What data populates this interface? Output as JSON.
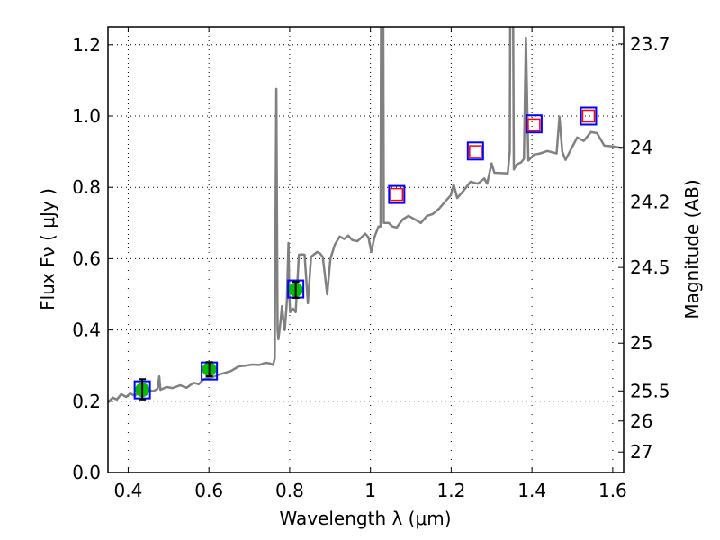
{
  "chart_data": {
    "type": "line",
    "title": "",
    "xlabel": "Wavelength  λ (μm)",
    "ylabel": "Flux  Fν  ( μJy )",
    "ylabel_right": "Magnitude (AB)",
    "xlim": [
      0.35,
      1.627
    ],
    "ylim": [
      0.0,
      1.25
    ],
    "grid": true,
    "x_ticks": [
      0.4,
      0.6,
      0.8,
      1.0,
      1.2,
      1.4,
      1.6
    ],
    "x_tick_labels": [
      "0.4",
      "0.6",
      "0.8",
      "1",
      "1.2",
      "1.4",
      "1.6"
    ],
    "y_ticks": [
      0.0,
      0.2,
      0.4,
      0.6,
      0.8,
      1.0,
      1.2
    ],
    "y_tick_labels": [
      "0.0",
      "0.2",
      "0.4",
      "0.6",
      "0.8",
      "1.0",
      "1.2"
    ],
    "right_ticks_mag": [
      23.7,
      24,
      24.2,
      24.5,
      25,
      25.5,
      26,
      27
    ],
    "right_tick_labels": [
      "23.7",
      "24",
      "24.2",
      "24.5",
      "25",
      "25.5",
      "26",
      "27"
    ],
    "colors": {
      "spectrum": "#808080",
      "observed": "#00bb00",
      "model_box": "#0000ff",
      "upper": "#ff0000",
      "errorbar": "#000000"
    },
    "series": [
      {
        "name": "model spectrum",
        "type": "line",
        "points": [
          [
            0.35,
            0.197
          ],
          [
            0.362,
            0.21
          ],
          [
            0.372,
            0.205
          ],
          [
            0.383,
            0.22
          ],
          [
            0.395,
            0.212
          ],
          [
            0.405,
            0.222
          ],
          [
            0.417,
            0.215
          ],
          [
            0.428,
            0.228
          ],
          [
            0.439,
            0.222
          ],
          [
            0.45,
            0.232
          ],
          [
            0.462,
            0.228
          ],
          [
            0.473,
            0.235
          ],
          [
            0.477,
            0.27
          ],
          [
            0.48,
            0.232
          ],
          [
            0.495,
            0.24
          ],
          [
            0.51,
            0.237
          ],
          [
            0.529,
            0.245
          ],
          [
            0.545,
            0.238
          ],
          [
            0.562,
            0.252
          ],
          [
            0.575,
            0.248
          ],
          [
            0.585,
            0.26
          ],
          [
            0.596,
            0.265
          ],
          [
            0.61,
            0.268
          ],
          [
            0.625,
            0.275
          ],
          [
            0.641,
            0.28
          ],
          [
            0.655,
            0.285
          ],
          [
            0.674,
            0.298
          ],
          [
            0.69,
            0.3
          ],
          [
            0.708,
            0.303
          ],
          [
            0.725,
            0.302
          ],
          [
            0.74,
            0.308
          ],
          [
            0.752,
            0.306
          ],
          [
            0.759,
            0.302
          ],
          [
            0.763,
            0.32
          ],
          [
            0.767,
            1.076
          ],
          [
            0.77,
            0.4
          ],
          [
            0.772,
            0.374
          ],
          [
            0.777,
            0.42
          ],
          [
            0.781,
            0.467
          ],
          [
            0.785,
            0.42
          ],
          [
            0.788,
            0.4
          ],
          [
            0.793,
            0.48
          ],
          [
            0.797,
            0.644
          ],
          [
            0.799,
            0.5
          ],
          [
            0.801,
            0.45
          ],
          [
            0.808,
            0.46
          ],
          [
            0.815,
            0.45
          ],
          [
            0.823,
            0.611
          ],
          [
            0.83,
            0.612
          ],
          [
            0.837,
            0.611
          ],
          [
            0.845,
            0.475
          ],
          [
            0.853,
            0.605
          ],
          [
            0.868,
            0.619
          ],
          [
            0.875,
            0.615
          ],
          [
            0.882,
            0.605
          ],
          [
            0.893,
            0.5
          ],
          [
            0.901,
            0.6
          ],
          [
            0.912,
            0.64
          ],
          [
            0.924,
            0.662
          ],
          [
            0.935,
            0.655
          ],
          [
            0.945,
            0.665
          ],
          [
            0.955,
            0.652
          ],
          [
            0.968,
            0.649
          ],
          [
            0.987,
            0.67
          ],
          [
            0.995,
            0.66
          ],
          [
            1.002,
            0.619
          ],
          [
            1.01,
            0.66
          ],
          [
            1.02,
            0.69
          ],
          [
            1.025,
            0.69
          ],
          [
            1.027,
            1.6
          ],
          [
            1.031,
            1.6
          ],
          [
            1.033,
            0.7
          ],
          [
            1.045,
            0.7
          ],
          [
            1.055,
            0.69
          ],
          [
            1.065,
            0.687
          ],
          [
            1.08,
            0.71
          ],
          [
            1.094,
            0.72
          ],
          [
            1.11,
            0.71
          ],
          [
            1.125,
            0.7
          ],
          [
            1.14,
            0.72
          ],
          [
            1.154,
            0.725
          ],
          [
            1.17,
            0.74
          ],
          [
            1.185,
            0.76
          ],
          [
            1.199,
            0.778
          ],
          [
            1.206,
            0.808
          ],
          [
            1.215,
            0.77
          ],
          [
            1.23,
            0.79
          ],
          [
            1.248,
            0.816
          ],
          [
            1.266,
            0.81
          ],
          [
            1.282,
            0.825
          ],
          [
            1.289,
            0.81
          ],
          [
            1.3,
            0.867
          ],
          [
            1.307,
            0.841
          ],
          [
            1.325,
            0.84
          ],
          [
            1.34,
            0.839
          ],
          [
            1.345,
            0.9
          ],
          [
            1.347,
            1.6
          ],
          [
            1.352,
            1.6
          ],
          [
            1.355,
            0.85
          ],
          [
            1.362,
            0.864
          ],
          [
            1.373,
            0.87
          ],
          [
            1.38,
            0.88
          ],
          [
            1.385,
            1.22
          ],
          [
            1.391,
            0.875
          ],
          [
            1.405,
            0.892
          ],
          [
            1.42,
            0.895
          ],
          [
            1.438,
            0.902
          ],
          [
            1.461,
            0.895
          ],
          [
            1.468,
            0.998
          ],
          [
            1.475,
            0.9
          ],
          [
            1.483,
            0.877
          ],
          [
            1.496,
            0.905
          ],
          [
            1.512,
            0.94
          ],
          [
            1.528,
            0.93
          ],
          [
            1.546,
            0.955
          ],
          [
            1.561,
            0.952
          ],
          [
            1.579,
            0.917
          ],
          [
            1.601,
            0.915
          ],
          [
            1.623,
            0.91
          ]
        ]
      },
      {
        "name": "observed photometry",
        "type": "scatter",
        "points": [
          {
            "x": 0.435,
            "y": 0.232,
            "err_low": 0.205,
            "err_high": 0.262
          },
          {
            "x": 0.601,
            "y": 0.29,
            "err_low": 0.27,
            "err_high": 0.31
          },
          {
            "x": 0.815,
            "y": 0.513,
            "err_low": 0.49,
            "err_high": 0.535
          }
        ]
      },
      {
        "name": "model photometry",
        "type": "scatter",
        "points": [
          [
            0.435,
            0.232
          ],
          [
            0.601,
            0.285
          ],
          [
            0.815,
            0.515
          ],
          [
            1.065,
            0.78
          ],
          [
            1.26,
            0.902
          ],
          [
            1.405,
            0.978
          ],
          [
            1.54,
            1.0
          ]
        ]
      },
      {
        "name": "non-detections",
        "type": "scatter",
        "points": [
          [
            1.065,
            0.78
          ],
          [
            1.26,
            0.9
          ],
          [
            1.405,
            0.975
          ],
          [
            1.54,
            1.0
          ]
        ]
      }
    ]
  }
}
